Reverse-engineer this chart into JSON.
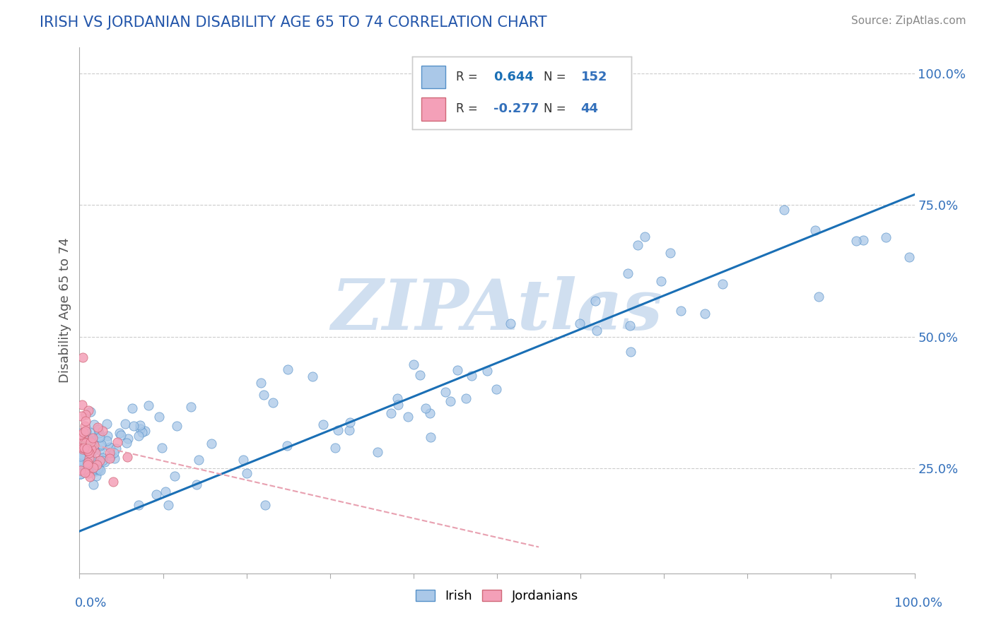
{
  "title": "IRISH VS JORDANIAN DISABILITY AGE 65 TO 74 CORRELATION CHART",
  "source": "Source: ZipAtlas.com",
  "ylabel": "Disability Age 65 to 74",
  "irish_R": 0.644,
  "irish_N": 152,
  "jordanian_R": -0.277,
  "jordanian_N": 44,
  "irish_color": "#aac8e8",
  "irish_edge_color": "#5590c8",
  "jordanian_color": "#f4a0b8",
  "jordanian_edge_color": "#d06878",
  "irish_line_color": "#1a6fb5",
  "jordanian_line_color": "#e05060",
  "jordanian_line_color2": "#e8a0b0",
  "title_color": "#2255aa",
  "label_color": "#3370bb",
  "watermark_color": "#d0dff0",
  "background_color": "#ffffff",
  "grid_color": "#cccccc",
  "spine_color": "#aaaaaa",
  "y_ticks": [
    0.25,
    0.5,
    0.75,
    1.0
  ],
  "y_tick_labels": [
    "25.0%",
    "50.0%",
    "75.0%",
    "100.0%"
  ],
  "xlim": [
    0.0,
    1.0
  ],
  "ylim": [
    0.05,
    1.05
  ],
  "irish_line_x0": 0.0,
  "irish_line_y0": 0.13,
  "irish_line_x1": 1.0,
  "irish_line_y1": 0.77,
  "jord_line_x0": 0.0,
  "jord_line_y0": 0.3,
  "jord_line_x1": 0.55,
  "jord_line_y1": 0.1,
  "irish_seed": 12,
  "jord_seed": 7
}
